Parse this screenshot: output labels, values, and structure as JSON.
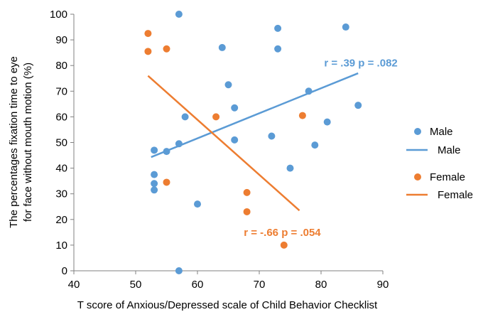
{
  "colors": {
    "male": "#5B9BD5",
    "female": "#ED7D31",
    "axis": "#808080",
    "text": "#000000"
  },
  "chart_data": {
    "type": "scatter",
    "title": "",
    "xlabel": "T score of Anxious/Depressed scale of Child Behavior Checklist",
    "ylabel_lines": [
      "The percentages fixation time to eye",
      "for face without mouth motion (%)"
    ],
    "xlim": [
      40,
      90
    ],
    "ylim": [
      0,
      100
    ],
    "xticks": [
      40,
      50,
      60,
      70,
      80,
      90
    ],
    "yticks": [
      0,
      10,
      20,
      30,
      40,
      50,
      60,
      70,
      80,
      90,
      100
    ],
    "grid": false,
    "legend_position": "right",
    "legend": [
      {
        "label": "Male",
        "series": "male",
        "kind": "marker"
      },
      {
        "label": "Male",
        "series": "male",
        "kind": "line"
      },
      {
        "label": "Female",
        "series": "female",
        "kind": "marker"
      },
      {
        "label": "Female",
        "series": "female",
        "kind": "line"
      }
    ],
    "series": [
      {
        "key": "male",
        "name": "Male",
        "color": "#5B9BD5",
        "points": [
          [
            57,
            100
          ],
          [
            64,
            87
          ],
          [
            73,
            94.5
          ],
          [
            73,
            86.5
          ],
          [
            84,
            95
          ],
          [
            65,
            72.5
          ],
          [
            78,
            70
          ],
          [
            86,
            64.5
          ],
          [
            66,
            63.5
          ],
          [
            58,
            60
          ],
          [
            81,
            58
          ],
          [
            72,
            52.5
          ],
          [
            66,
            51
          ],
          [
            57,
            49.5
          ],
          [
            79,
            49
          ],
          [
            53,
            47
          ],
          [
            55,
            46.5
          ],
          [
            75,
            40
          ],
          [
            53,
            37.5
          ],
          [
            53,
            34
          ],
          [
            53,
            31.5
          ],
          [
            60,
            26
          ],
          [
            57,
            0
          ]
        ],
        "trendline": [
          [
            52.5,
            44.3
          ],
          [
            86,
            77
          ]
        ]
      },
      {
        "key": "female",
        "name": "Female",
        "color": "#ED7D31",
        "points": [
          [
            52,
            92.5
          ],
          [
            52,
            85.5
          ],
          [
            55,
            86.5
          ],
          [
            63,
            60
          ],
          [
            77,
            60.5
          ],
          [
            55,
            34.5
          ],
          [
            68,
            30.5
          ],
          [
            68,
            23
          ],
          [
            74,
            10
          ]
        ],
        "trendline": [
          [
            52,
            76
          ],
          [
            76.5,
            23.5
          ]
        ]
      }
    ],
    "annotations": [
      {
        "text": "r = .39  p = .082",
        "series": "male",
        "x": 80.5,
        "y": 81
      },
      {
        "text": "r = -.66 p = .054",
        "series": "female",
        "x": 67.5,
        "y": 15
      }
    ]
  }
}
